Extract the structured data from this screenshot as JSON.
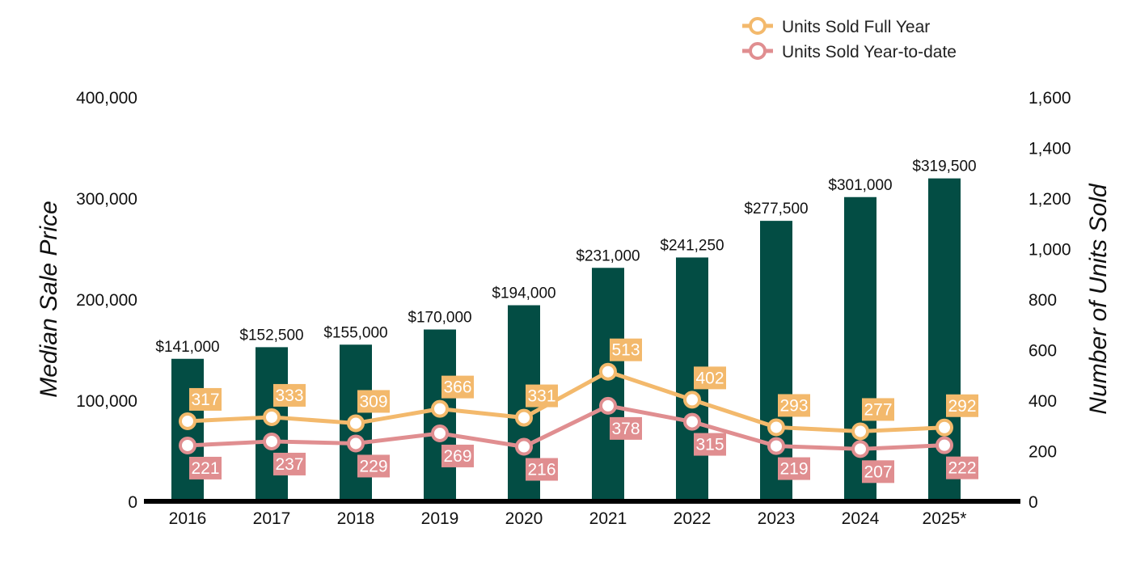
{
  "chart_data": {
    "type": "bar",
    "categories": [
      "2016",
      "2017",
      "2018",
      "2019",
      "2020",
      "2021",
      "2022",
      "2023",
      "2024",
      "2025*"
    ],
    "bar_series": {
      "values": [
        141000,
        152500,
        155000,
        170000,
        194000,
        231000,
        241250,
        277500,
        301000,
        319500
      ],
      "labels": [
        "$141,000",
        "$152,500",
        "$155,000",
        "$170,000",
        "$194,000",
        "$231,000",
        "$241,250",
        "$277,500",
        "$301,000",
        "$319,500"
      ],
      "color": "#034D44"
    },
    "line_series": [
      {
        "name": "Units Sold Full Year",
        "values": [
          317,
          333,
          309,
          366,
          331,
          513,
          402,
          293,
          277,
          292
        ],
        "color": "#F3B96C",
        "label_position": "above"
      },
      {
        "name": "Units Sold Year-to-date",
        "values": [
          221,
          237,
          229,
          269,
          216,
          378,
          315,
          219,
          207,
          222
        ],
        "color": "#E08E90",
        "label_position": "below"
      }
    ],
    "y_left": {
      "label": "Median Sale Price",
      "ylim": [
        0,
        400000
      ],
      "ticks": [
        "0",
        "100,000",
        "200,000",
        "300,000",
        "400,000"
      ]
    },
    "y_right": {
      "label": "Number of Units Sold",
      "ylim": [
        0,
        1600
      ],
      "ticks": [
        "0",
        "200",
        "400",
        "600",
        "800",
        "1,000",
        "1,200",
        "1,400",
        "1,600"
      ]
    },
    "legend_position": "top-right",
    "grid": false
  }
}
